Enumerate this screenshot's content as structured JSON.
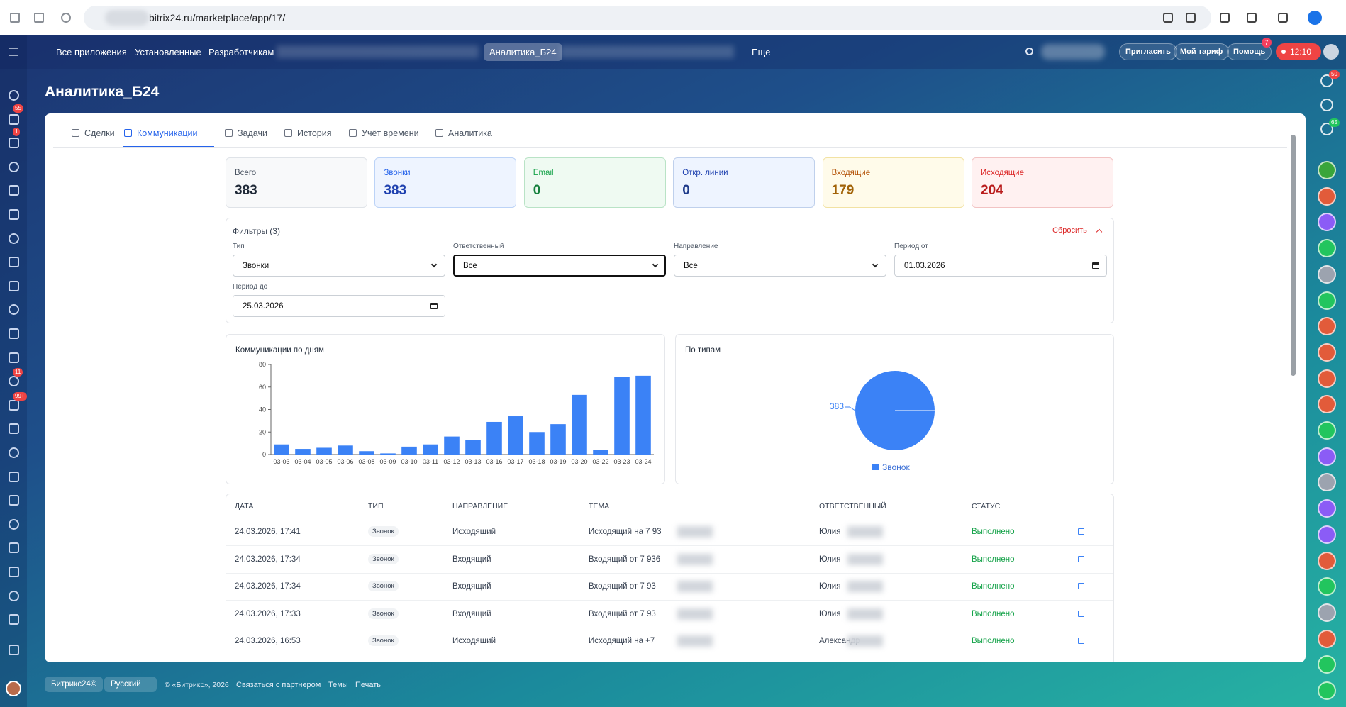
{
  "browser": {
    "url": "bitrix24.ru/marketplace/app/17/"
  },
  "topnav": {
    "items": [
      "Все приложения",
      "Установленные",
      "Разработчикам",
      "Аналитика_Б24",
      "Еще"
    ],
    "actions": [
      "Пригласить",
      "Мой тариф",
      "Помощь"
    ],
    "help_badge": "7",
    "time": "12:10"
  },
  "left_sidebar": {
    "badges": [
      "55",
      "1",
      "11",
      "99+"
    ]
  },
  "right_sidebar": {
    "badges": [
      "50",
      "65"
    ]
  },
  "page": {
    "title": "Аналитика_Б24"
  },
  "tabs": [
    "Сделки",
    "Коммуникации",
    "Задачи",
    "История",
    "Учёт времени",
    "Аналитика"
  ],
  "stats": [
    {
      "label": "Всего",
      "value": 383
    },
    {
      "label": "Звонки",
      "value": 383
    },
    {
      "label": "Email",
      "value": 0
    },
    {
      "label": "Откр. линии",
      "value": 0
    },
    {
      "label": "Входящие",
      "value": 179
    },
    {
      "label": "Исходящие",
      "value": 204
    }
  ],
  "filters": {
    "title": "Фильтры (3)",
    "reset": "Сбросить",
    "fields": [
      {
        "label": "Тип",
        "value": "Звонки"
      },
      {
        "label": "Ответственный",
        "value": "Все"
      },
      {
        "label": "Направление",
        "value": "Все"
      },
      {
        "label": "Период от",
        "value": "01.03.2026"
      },
      {
        "label": "Период до",
        "value": "25.03.2026"
      }
    ]
  },
  "chart_data": [
    {
      "type": "bar",
      "title": "Коммуникации по дням",
      "categories": [
        "03-03",
        "03-04",
        "03-05",
        "03-06",
        "03-08",
        "03-09",
        "03-10",
        "03-11",
        "03-12",
        "03-13",
        "03-16",
        "03-17",
        "03-18",
        "03-19",
        "03-20",
        "03-22",
        "03-23",
        "03-24"
      ],
      "values": [
        9,
        5,
        6,
        8,
        3,
        1,
        7,
        9,
        16,
        13,
        29,
        34,
        20,
        27,
        53,
        4,
        69,
        70
      ],
      "color": "#3b82f6",
      "ylim": [
        0,
        80
      ],
      "yticks": [
        0,
        20,
        40,
        60,
        80
      ]
    },
    {
      "type": "pie",
      "title": "По типам",
      "categories": [
        "Звонок"
      ],
      "values": [
        383
      ],
      "colors": [
        "#3b82f6"
      ]
    }
  ],
  "table": {
    "headers": [
      "ДАТА",
      "ТИП",
      "НАПРАВЛЕНИЕ",
      "ТЕМА",
      "ОТВЕТСТВЕННЫЙ",
      "СТАТУС"
    ],
    "rows": [
      [
        "24.03.2026, 17:41",
        "Звонок",
        "Исходящий",
        "Исходящий на 7 93",
        "Юлия",
        "Выполнено"
      ],
      [
        "24.03.2026, 17:34",
        "Звонок",
        "Входящий",
        "Входящий от 7 936",
        "Юлия",
        "Выполнено"
      ],
      [
        "24.03.2026, 17:34",
        "Звонок",
        "Входящий",
        "Входящий от 7 93",
        "Юлия",
        "Выполнено"
      ],
      [
        "24.03.2026, 17:33",
        "Звонок",
        "Входящий",
        "Входящий от 7 93",
        "Юлия",
        "Выполнено"
      ],
      [
        "24.03.2026, 16:53",
        "Звонок",
        "Исходящий",
        "Исходящий на +7",
        "Александр",
        "Выполнено"
      ]
    ]
  },
  "footer": {
    "brand": "Битрикс24©",
    "language": "Русский",
    "copyright": "© «Битрикс», 2026",
    "links": [
      "Связаться с партнером",
      "Темы",
      "Печать"
    ]
  }
}
